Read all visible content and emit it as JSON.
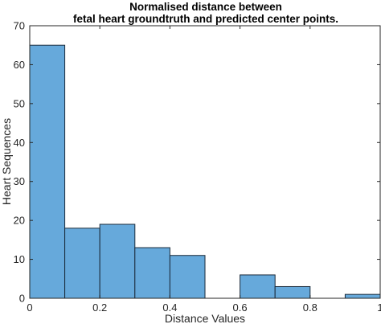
{
  "chart_data": {
    "type": "bar",
    "subtype": "histogram",
    "title": [
      "Normalised distance between",
      "fetal heart groundtruth and predicted center points."
    ],
    "xlabel": "Distance Values",
    "ylabel": "Heart Sequences",
    "xlim": [
      0,
      1
    ],
    "ylim": [
      0,
      70
    ],
    "xticks": [
      0,
      0.2,
      0.4,
      0.6,
      0.8,
      1
    ],
    "xtick_labels": [
      "0",
      "0.2",
      "0.4",
      "0.6",
      "0.8",
      "1"
    ],
    "yticks": [
      0,
      10,
      20,
      30,
      40,
      50,
      60,
      70
    ],
    "ytick_labels": [
      "0",
      "10",
      "20",
      "30",
      "40",
      "50",
      "60",
      "70"
    ],
    "bins": [
      {
        "x0": 0.0,
        "x1": 0.1,
        "count": 65
      },
      {
        "x0": 0.1,
        "x1": 0.2,
        "count": 18
      },
      {
        "x0": 0.2,
        "x1": 0.3,
        "count": 19
      },
      {
        "x0": 0.3,
        "x1": 0.4,
        "count": 13
      },
      {
        "x0": 0.4,
        "x1": 0.5,
        "count": 11
      },
      {
        "x0": 0.5,
        "x1": 0.6,
        "count": 0
      },
      {
        "x0": 0.6,
        "x1": 0.7,
        "count": 6
      },
      {
        "x0": 0.7,
        "x1": 0.8,
        "count": 3
      },
      {
        "x0": 0.8,
        "x1": 0.9,
        "count": 0
      },
      {
        "x0": 0.9,
        "x1": 1.0,
        "count": 1
      }
    ],
    "grid": false,
    "bar_color": "#66a9db",
    "bar_edge_color": "#1a2a3a"
  }
}
